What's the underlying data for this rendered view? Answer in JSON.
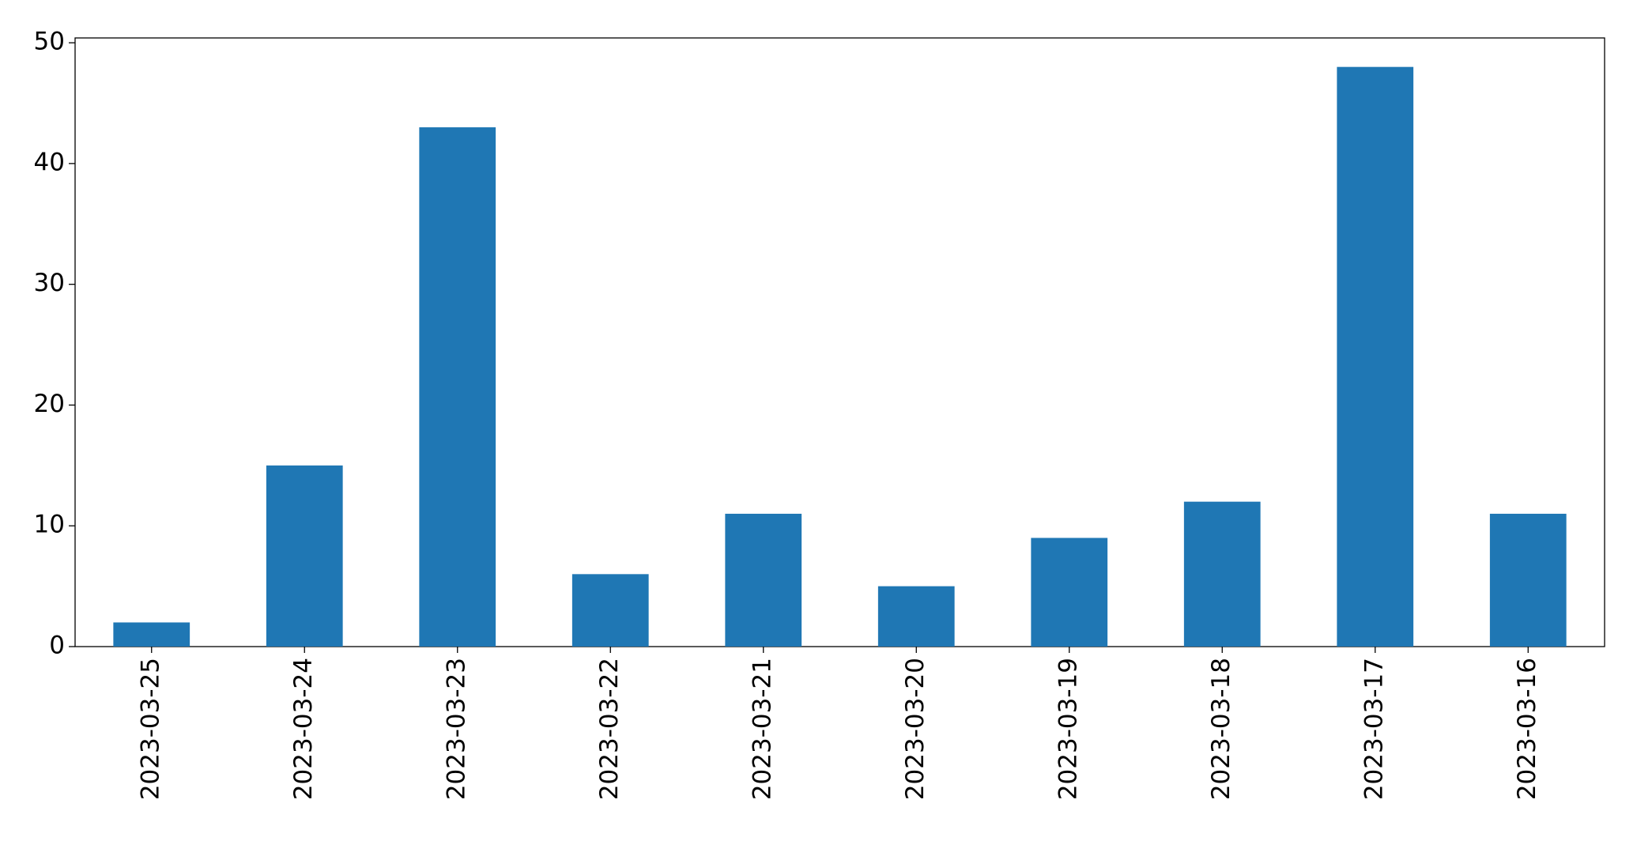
{
  "chart_data": {
    "type": "bar",
    "categories": [
      "2023-03-25",
      "2023-03-24",
      "2023-03-23",
      "2023-03-22",
      "2023-03-21",
      "2023-03-20",
      "2023-03-19",
      "2023-03-18",
      "2023-03-17",
      "2023-03-16"
    ],
    "values": [
      2,
      15,
      43,
      6,
      11,
      5,
      9,
      12,
      48,
      11
    ],
    "color": "#1f77b4",
    "ylim": [
      0,
      50.4
    ],
    "yticks": [
      0,
      10,
      20,
      30,
      40,
      50
    ],
    "grid": false
  }
}
